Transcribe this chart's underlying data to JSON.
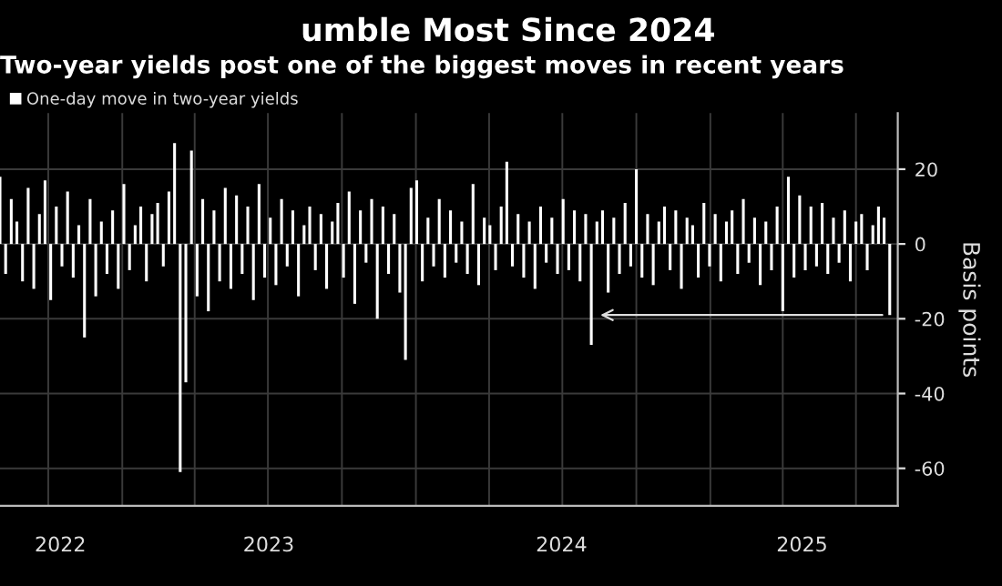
{
  "chart_data": {
    "type": "bar",
    "title": "umble Most Since 2024",
    "subtitle": "Two-year yields post one of the biggest moves in recent years",
    "ylabel": "Basis points",
    "x": [
      "2022-08-02",
      "2022-08-09",
      "2022-08-16",
      "2022-08-23",
      "2022-08-30",
      "2022-09-06",
      "2022-09-13",
      "2022-09-20",
      "2022-09-27",
      "2022-10-04",
      "2022-10-11",
      "2022-10-18",
      "2022-10-25",
      "2022-11-01",
      "2022-11-08",
      "2022-11-15",
      "2022-11-22",
      "2022-11-29",
      "2022-12-06",
      "2022-12-13",
      "2022-12-20",
      "2022-12-27",
      "2023-01-03",
      "2023-01-10",
      "2023-01-17",
      "2023-01-24",
      "2023-01-31",
      "2023-02-07",
      "2023-02-14",
      "2023-02-21",
      "2023-02-28",
      "2023-03-07",
      "2023-03-14",
      "2023-03-21",
      "2023-03-28",
      "2023-04-04",
      "2023-04-11",
      "2023-04-18",
      "2023-04-25",
      "2023-05-02",
      "2023-05-09",
      "2023-05-16",
      "2023-05-23",
      "2023-05-30",
      "2023-06-06",
      "2023-06-13",
      "2023-06-20",
      "2023-06-27",
      "2023-07-04",
      "2023-07-11",
      "2023-07-18",
      "2023-07-25",
      "2023-08-01",
      "2023-08-08",
      "2023-08-15",
      "2023-08-22",
      "2023-08-29",
      "2023-09-05",
      "2023-09-12",
      "2023-09-19",
      "2023-09-26",
      "2023-10-03",
      "2023-10-10",
      "2023-10-17",
      "2023-10-24",
      "2023-10-31",
      "2023-11-07",
      "2023-11-14",
      "2023-11-21",
      "2023-11-28",
      "2023-12-05",
      "2023-12-12",
      "2023-12-19",
      "2023-12-26",
      "2024-01-02",
      "2024-01-09",
      "2024-01-16",
      "2024-01-23",
      "2024-01-30",
      "2024-02-06",
      "2024-02-13",
      "2024-02-20",
      "2024-02-27",
      "2024-03-05",
      "2024-03-12",
      "2024-03-19",
      "2024-03-26",
      "2024-04-02",
      "2024-04-09",
      "2024-04-16",
      "2024-04-23",
      "2024-04-30",
      "2024-05-07",
      "2024-05-14",
      "2024-05-21",
      "2024-05-28",
      "2024-06-04",
      "2024-06-11",
      "2024-06-18",
      "2024-06-25",
      "2024-07-02",
      "2024-07-09",
      "2024-07-16",
      "2024-07-23",
      "2024-07-30",
      "2024-08-06",
      "2024-08-13",
      "2024-08-20",
      "2024-08-27",
      "2024-09-03",
      "2024-09-10",
      "2024-09-17",
      "2024-09-24",
      "2024-10-01",
      "2024-10-08",
      "2024-10-15",
      "2024-10-22",
      "2024-10-29",
      "2024-11-05",
      "2024-11-12",
      "2024-11-19",
      "2024-11-26",
      "2024-12-03",
      "2024-12-10",
      "2024-12-17",
      "2024-12-24",
      "2024-12-31",
      "2025-01-07",
      "2025-01-14",
      "2025-01-21",
      "2025-01-28",
      "2025-02-04",
      "2025-02-11",
      "2025-02-18",
      "2025-02-25",
      "2025-03-04",
      "2025-03-11",
      "2025-03-18",
      "2025-03-25",
      "2025-04-01",
      "2025-04-08",
      "2025-04-15",
      "2025-04-22",
      "2025-04-29",
      "2025-05-06",
      "2025-05-13",
      "2025-05-20",
      "2025-05-27",
      "2025-06-03",
      "2025-06-10",
      "2025-06-17",
      "2025-06-24",
      "2025-07-01",
      "2025-07-08",
      "2025-07-15",
      "2025-07-22",
      "2025-07-29",
      "2025-08-05",
      "2025-08-12"
    ],
    "series": [
      {
        "name": "One-day move in two-year yields",
        "color": "#ffffff",
        "values": [
          18,
          -8,
          12,
          6,
          -10,
          15,
          -12,
          8,
          17,
          -15,
          10,
          -6,
          14,
          -9,
          5,
          -25,
          12,
          -14,
          6,
          -8,
          9,
          -12,
          16,
          -7,
          5,
          10,
          -10,
          8,
          11,
          -6,
          14,
          27,
          -61,
          -37,
          25,
          -14,
          12,
          -18,
          9,
          -10,
          15,
          -12,
          13,
          -8,
          10,
          -15,
          16,
          -9,
          7,
          -11,
          12,
          -6,
          9,
          -14,
          5,
          10,
          -7,
          8,
          -12,
          6,
          11,
          -9,
          14,
          -16,
          9,
          -5,
          12,
          -20,
          10,
          -8,
          8,
          -13,
          -31,
          15,
          17,
          -10,
          7,
          -6,
          12,
          -9,
          9,
          -5,
          6,
          -8,
          16,
          -11,
          7,
          5,
          -7,
          10,
          22,
          -6,
          8,
          -9,
          6,
          -12,
          10,
          -5,
          7,
          -8,
          12,
          -7,
          9,
          -10,
          8,
          -27,
          6,
          9,
          -13,
          7,
          -8,
          11,
          -6,
          20,
          -9,
          8,
          -11,
          6,
          10,
          -7,
          9,
          -12,
          7,
          5,
          -9,
          11,
          -6,
          8,
          -10,
          6,
          9,
          -8,
          12,
          -5,
          7,
          -11,
          6,
          -7,
          10,
          -18,
          18,
          -9,
          13,
          -7,
          10,
          -6,
          11,
          -8,
          7,
          -5,
          9,
          -10,
          6,
          8,
          -7,
          5,
          10,
          7,
          -19
        ]
      }
    ],
    "xlim": [
      "2022-08-02",
      "2025-08-22"
    ],
    "xticks": [
      {
        "value": "2022-10-01",
        "label": null
      },
      {
        "value": "2022-10-16",
        "label": "2022"
      },
      {
        "value": "2023-01-01",
        "label": null
      },
      {
        "value": "2023-04-01",
        "label": null
      },
      {
        "value": "2023-07-01",
        "label": null
      },
      {
        "value": "2023-07-02",
        "label": "2023"
      },
      {
        "value": "2023-10-01",
        "label": null
      },
      {
        "value": "2024-01-01",
        "label": null
      },
      {
        "value": "2024-04-01",
        "label": null
      },
      {
        "value": "2024-07-01",
        "label": null
      },
      {
        "value": "2024-06-30",
        "label": "2024"
      },
      {
        "value": "2024-10-01",
        "label": null
      },
      {
        "value": "2025-01-01",
        "label": null
      },
      {
        "value": "2025-04-01",
        "label": null
      },
      {
        "value": "2025-04-25",
        "label": "2025"
      },
      {
        "value": "2025-07-01",
        "label": null
      }
    ],
    "ylim": [
      -70,
      35
    ],
    "yticks": [
      20,
      0,
      -20,
      -40,
      -60
    ],
    "grid": true,
    "legend": "top left"
  }
}
